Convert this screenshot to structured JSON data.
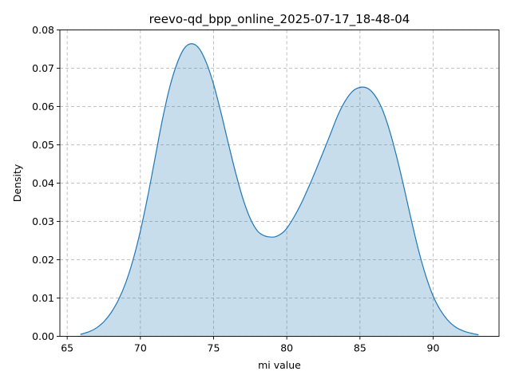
{
  "chart_data": {
    "type": "area",
    "title": "reevo-qd_bpp_online_2025-07-17_18-48-04",
    "xlabel": "mi value",
    "ylabel": "Density",
    "xlim": [
      64.5,
      94.5
    ],
    "ylim": [
      0,
      0.08
    ],
    "xticks": [
      65,
      70,
      75,
      80,
      85,
      90
    ],
    "yticks": [
      0.0,
      0.01,
      0.02,
      0.03,
      0.04,
      0.05,
      0.06,
      0.07,
      0.08
    ],
    "ytick_labels": [
      "0.00",
      "0.01",
      "0.02",
      "0.03",
      "0.04",
      "0.05",
      "0.06",
      "0.07",
      "0.08"
    ],
    "grid": true,
    "line_color": "#1f77b4",
    "fill_color": "#1f77b4",
    "fill_opacity": 0.25,
    "series": [
      {
        "x": [
          65.9,
          66.5,
          67.0,
          67.5,
          68.0,
          68.5,
          69.0,
          69.5,
          70.0,
          70.5,
          71.0,
          71.5,
          72.0,
          72.5,
          73.0,
          73.5,
          74.0,
          74.5,
          75.0,
          75.5,
          76.0,
          76.5,
          77.0,
          77.5,
          78.0,
          78.5,
          79.0,
          79.3,
          79.7,
          80.0,
          80.5,
          81.0,
          81.5,
          82.0,
          82.5,
          83.0,
          83.5,
          84.0,
          84.5,
          85.0,
          85.5,
          86.0,
          86.5,
          87.0,
          87.5,
          88.0,
          88.5,
          89.0,
          89.5,
          90.0,
          90.5,
          91.0,
          91.5,
          92.0,
          92.5,
          93.1
        ],
        "y": [
          0.0005,
          0.0012,
          0.0022,
          0.0038,
          0.0062,
          0.0095,
          0.014,
          0.02,
          0.0275,
          0.0365,
          0.0465,
          0.0565,
          0.065,
          0.0712,
          0.0752,
          0.0764,
          0.0752,
          0.0715,
          0.0658,
          0.0585,
          0.0505,
          0.0428,
          0.036,
          0.0308,
          0.0275,
          0.0262,
          0.0259,
          0.0261,
          0.027,
          0.0282,
          0.0312,
          0.0348,
          0.039,
          0.0435,
          0.0482,
          0.053,
          0.0578,
          0.0615,
          0.064,
          0.065,
          0.0648,
          0.063,
          0.0595,
          0.054,
          0.047,
          0.039,
          0.0305,
          0.0225,
          0.0158,
          0.0105,
          0.0068,
          0.0042,
          0.0025,
          0.0015,
          0.0009,
          0.0004
        ]
      }
    ]
  }
}
